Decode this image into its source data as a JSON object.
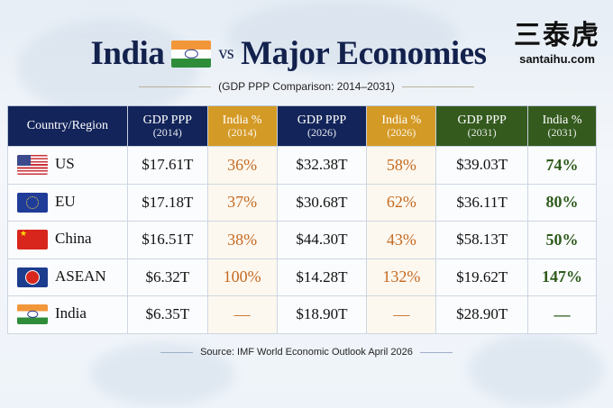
{
  "brand": {
    "chinese": "三泰虎",
    "site": "santaihu.com"
  },
  "title": {
    "left": "India",
    "vs": "vs",
    "right": "Major Economies"
  },
  "subtitle": "(GDP PPP Comparison: 2014–2031)",
  "table": {
    "headers": [
      {
        "label": "Country/Region",
        "year": ""
      },
      {
        "label": "GDP PPP",
        "year": "(2014)"
      },
      {
        "label": "India %",
        "year": "(2014)"
      },
      {
        "label": "GDP PPP",
        "year": "(2026)"
      },
      {
        "label": "India %",
        "year": "(2026)"
      },
      {
        "label": "GDP PPP",
        "year": "(2031)"
      },
      {
        "label": "India %",
        "year": "(2031)"
      }
    ],
    "rows": [
      {
        "country": "US",
        "flag": "us-flag",
        "cells": [
          "$17.61T",
          "36%",
          "$32.38T",
          "58%",
          "$39.03T",
          "74%"
        ]
      },
      {
        "country": "EU",
        "flag": "eu-flag",
        "cells": [
          "$17.18T",
          "37%",
          "$30.68T",
          "62%",
          "$36.11T",
          "80%"
        ]
      },
      {
        "country": "China",
        "flag": "china-flag",
        "cells": [
          "$16.51T",
          "38%",
          "$44.30T",
          "43%",
          "$58.13T",
          "50%"
        ]
      },
      {
        "country": "ASEAN",
        "flag": "asean-flag",
        "cells": [
          "$6.32T",
          "100%",
          "$14.28T",
          "132%",
          "$19.62T",
          "147%"
        ]
      },
      {
        "country": "India",
        "flag": "india-flag",
        "cells": [
          "$6.35T",
          "—",
          "$18.90T",
          "—",
          "$28.90T",
          "—"
        ]
      }
    ]
  },
  "source": "Source: IMF World Economic Outlook April 2026",
  "colors": {
    "navy": "#13245a",
    "gold": "#d49a26",
    "green": "#345a1e",
    "orange_text": "#c46a22",
    "green_text": "#2e5b1c"
  }
}
